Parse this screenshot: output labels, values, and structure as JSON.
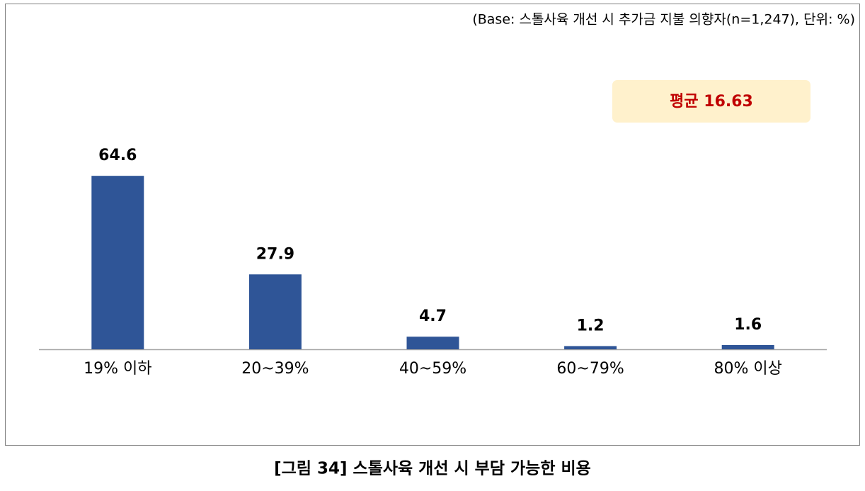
{
  "chart_data": {
    "type": "bar",
    "note": "(Base: 스톨사육 개선 시 추가금 지불 의향자(n=1,247), 단위: %)",
    "annotation": "평균 16.63",
    "categories": [
      "19% 이하",
      "20~39%",
      "40~59%",
      "60~79%",
      "80% 이상"
    ],
    "values": [
      64.6,
      27.9,
      4.7,
      1.2,
      1.6
    ],
    "color": "#2f5597",
    "caption": "[그림 34] 스톨사육 개선 시 부담 가능한 비용"
  }
}
